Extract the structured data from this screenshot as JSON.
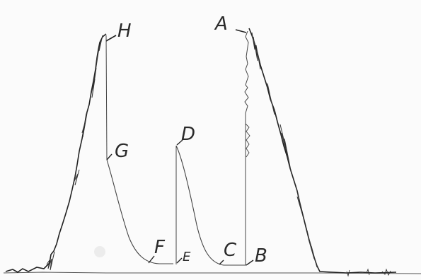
{
  "figure": {
    "kind": "hand-drawn trace",
    "ink_color": "#2a2a2a",
    "paper_color": "#fbfbfb"
  },
  "labels": {
    "A": "A",
    "B": "B",
    "C": "C",
    "D": "D",
    "E": "E",
    "F": "F",
    "G": "G",
    "H": "H"
  }
}
